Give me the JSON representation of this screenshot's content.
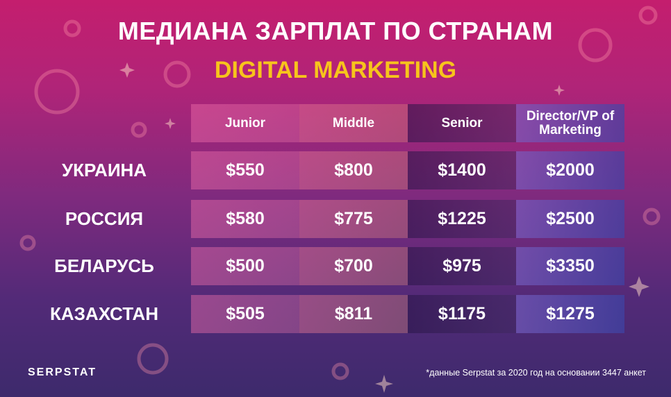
{
  "title": "МЕДИАНА ЗАРПЛАТ ПО СТРАНАМ",
  "subtitle": "DIGITAL MARKETING",
  "table": {
    "columns": [
      "Junior",
      "Middle",
      "Senior",
      "Director/VP of Marketing"
    ],
    "rows": [
      {
        "label": "УКРАИНА",
        "cells": [
          "$550",
          "$800",
          "$1400",
          "$2000"
        ]
      },
      {
        "label": "РОССИЯ",
        "cells": [
          "$580",
          "$775",
          "$1225",
          "$2500"
        ]
      },
      {
        "label": "БЕЛАРУСЬ",
        "cells": [
          "$500",
          "$700",
          "$975",
          "$3350"
        ]
      },
      {
        "label": "КАЗАХСТАН",
        "cells": [
          "$505",
          "$811",
          "$1175",
          "$1275"
        ]
      }
    ]
  },
  "logo": "SERPSTAT",
  "footnote": "*данные Serpstat за 2020 год на основании 3447 анкет"
}
